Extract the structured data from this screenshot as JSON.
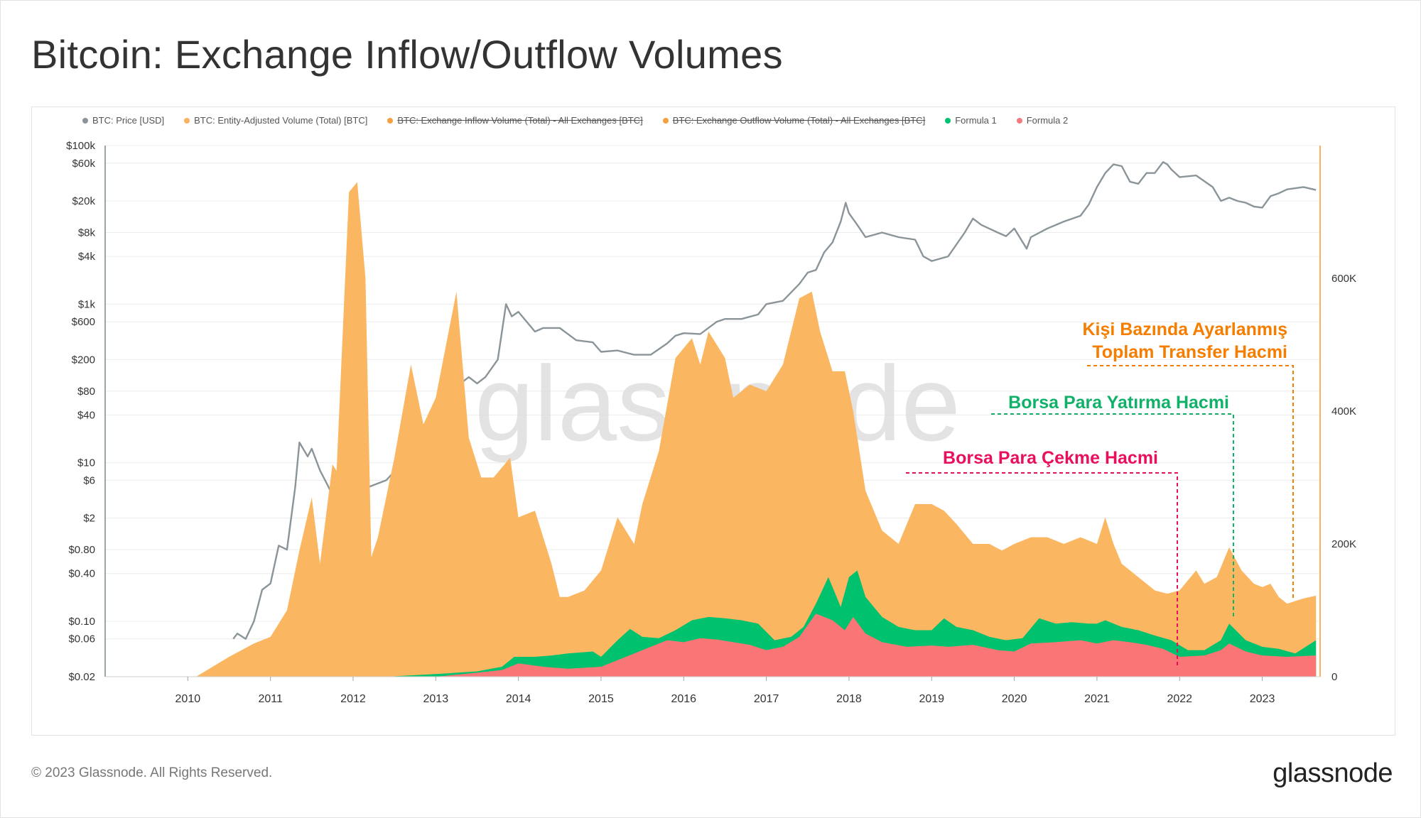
{
  "title": "Bitcoin: Exchange Inflow/Outflow Volumes",
  "legend": [
    {
      "label": "BTC: Price [USD]",
      "color": "#8a9499",
      "struck": false
    },
    {
      "label": "BTC: Entity-Adjusted Volume (Total) [BTC]",
      "color": "#fbb160",
      "struck": false
    },
    {
      "label": "BTC: Exchange Inflow Volume (Total) - All Exchanges [BTC]",
      "color": "#f5a03c",
      "struck": true
    },
    {
      "label": "BTC: Exchange Outflow Volume (Total) - All Exchanges [BTC]",
      "color": "#f5a03c",
      "struck": true
    },
    {
      "label": "Formula 1",
      "color": "#00c16e",
      "struck": false
    },
    {
      "label": "Formula 2",
      "color": "#f37a7e",
      "struck": false
    }
  ],
  "annotations": {
    "adjusted_line1": "Kişi Bazında Ayarlanmış",
    "adjusted_line2": "Toplam Transfer Hacmi",
    "inflow": "Borsa Para Yatırma Hacmi",
    "outflow": "Borsa Para Çekme Hacmi"
  },
  "watermark": "glassnode",
  "footer": "© 2023 Glassnode. All Rights Reserved.",
  "brand": "glassnode",
  "colors": {
    "price": "#8a9499",
    "volume": "#fbb661",
    "formula1": "#00c16e",
    "formula2": "#fa7676",
    "orange_text": "#f57d00",
    "green_text": "#11b16a",
    "pink_text": "#ea0f5e"
  },
  "chart_data": {
    "type": "area",
    "x_ticks": [
      "2010",
      "2011",
      "2012",
      "2013",
      "2014",
      "2015",
      "2016",
      "2017",
      "2018",
      "2019",
      "2020",
      "2021",
      "2022",
      "2023"
    ],
    "x_range": [
      2009.0,
      2023.7
    ],
    "y_left_ticks": [
      "$100k",
      "$60k",
      "$20k",
      "$8k",
      "$4k",
      "$1k",
      "$600",
      "$200",
      "$80",
      "$40",
      "$10",
      "$6",
      "$2",
      "$0.80",
      "$0.40",
      "$0.10",
      "$0.06",
      "$0.02"
    ],
    "y_left_tick_values": [
      100000,
      60000,
      20000,
      8000,
      4000,
      1000,
      600,
      200,
      80,
      40,
      10,
      6,
      2,
      0.8,
      0.4,
      0.1,
      0.06,
      0.02
    ],
    "y_left_range_log": [
      0.02,
      100000
    ],
    "y_right_ticks": [
      "600K",
      "400K",
      "200K",
      "0"
    ],
    "y_right_tick_values": [
      600000,
      400000,
      200000,
      0
    ],
    "y_right_range": [
      0,
      800000
    ],
    "series": [
      {
        "name": "BTC: Price [USD]",
        "axis": "left",
        "scale": "log",
        "x": [
          2010.55,
          2010.6,
          2010.7,
          2010.8,
          2010.9,
          2011.0,
          2011.1,
          2011.2,
          2011.3,
          2011.35,
          2011.45,
          2011.5,
          2011.6,
          2011.7,
          2011.8,
          2011.9,
          2012.0,
          2012.2,
          2012.4,
          2012.6,
          2012.7,
          2012.9,
          2013.0,
          2013.15,
          2013.25,
          2013.3,
          2013.4,
          2013.5,
          2013.6,
          2013.75,
          2013.85,
          2013.92,
          2014.0,
          2014.1,
          2014.2,
          2014.3,
          2014.5,
          2014.7,
          2014.9,
          2015.0,
          2015.2,
          2015.4,
          2015.6,
          2015.8,
          2015.9,
          2016.0,
          2016.2,
          2016.4,
          2016.5,
          2016.7,
          2016.9,
          2017.0,
          2017.2,
          2017.4,
          2017.5,
          2017.6,
          2017.7,
          2017.8,
          2017.9,
          2017.96,
          2018.0,
          2018.1,
          2018.2,
          2018.4,
          2018.6,
          2018.8,
          2018.9,
          2019.0,
          2019.2,
          2019.4,
          2019.5,
          2019.6,
          2019.8,
          2019.9,
          2020.0,
          2020.15,
          2020.2,
          2020.4,
          2020.6,
          2020.8,
          2020.9,
          2021.0,
          2021.1,
          2021.2,
          2021.3,
          2021.4,
          2021.5,
          2021.6,
          2021.7,
          2021.8,
          2021.85,
          2021.9,
          2022.0,
          2022.2,
          2022.4,
          2022.5,
          2022.6,
          2022.7,
          2022.8,
          2022.9,
          2023.0,
          2023.1,
          2023.2,
          2023.3,
          2023.5,
          2023.65
        ],
        "y": [
          0.06,
          0.07,
          0.06,
          0.1,
          0.25,
          0.3,
          0.9,
          0.8,
          5,
          18,
          12,
          15,
          8,
          5,
          3,
          3.2,
          5,
          5,
          6,
          10,
          11,
          13,
          14,
          60,
          230,
          100,
          120,
          100,
          120,
          200,
          1000,
          700,
          800,
          600,
          450,
          500,
          500,
          350,
          330,
          250,
          260,
          230,
          230,
          320,
          400,
          430,
          420,
          600,
          650,
          650,
          740,
          1000,
          1100,
          1800,
          2500,
          2700,
          4500,
          6000,
          11000,
          19000,
          14000,
          10000,
          7000,
          8000,
          7000,
          6500,
          4000,
          3500,
          4000,
          8000,
          12000,
          10000,
          8000,
          7200,
          9000,
          5000,
          7000,
          9000,
          11000,
          13000,
          18000,
          30000,
          45000,
          58000,
          55000,
          35000,
          33000,
          45000,
          45000,
          62000,
          58000,
          50000,
          40000,
          42000,
          30000,
          20000,
          22000,
          20000,
          19000,
          17000,
          16500,
          23000,
          25000,
          28000,
          30000,
          27500
        ]
      },
      {
        "name": "BTC: Entity-Adjusted Volume (Total) [BTC]",
        "axis": "right",
        "x": [
          2009.0,
          2010.1,
          2010.5,
          2010.8,
          2011.0,
          2011.2,
          2011.35,
          2011.5,
          2011.6,
          2011.75,
          2011.8,
          2011.95,
          2012.05,
          2012.15,
          2012.22,
          2012.3,
          2012.5,
          2012.7,
          2012.85,
          2013.0,
          2013.25,
          2013.4,
          2013.55,
          2013.7,
          2013.9,
          2014.0,
          2014.2,
          2014.4,
          2014.5,
          2014.6,
          2014.8,
          2015.0,
          2015.2,
          2015.4,
          2015.5,
          2015.7,
          2015.9,
          2016.1,
          2016.2,
          2016.3,
          2016.5,
          2016.6,
          2016.8,
          2017.0,
          2017.2,
          2017.4,
          2017.55,
          2017.65,
          2017.8,
          2017.95,
          2018.05,
          2018.2,
          2018.4,
          2018.6,
          2018.8,
          2019.0,
          2019.15,
          2019.3,
          2019.5,
          2019.7,
          2019.85,
          2020.0,
          2020.2,
          2020.4,
          2020.6,
          2020.8,
          2021.0,
          2021.1,
          2021.2,
          2021.3,
          2021.5,
          2021.7,
          2021.85,
          2022.0,
          2022.2,
          2022.3,
          2022.45,
          2022.6,
          2022.75,
          2022.9,
          2023.0,
          2023.1,
          2023.2,
          2023.3,
          2023.5,
          2023.65
        ],
        "y": [
          0,
          0,
          30000,
          50000,
          60000,
          100000,
          190000,
          270000,
          170000,
          320000,
          310000,
          730000,
          745000,
          600000,
          180000,
          210000,
          330000,
          470000,
          380000,
          420000,
          580000,
          360000,
          300000,
          300000,
          330000,
          240000,
          250000,
          170000,
          120000,
          120000,
          130000,
          160000,
          240000,
          200000,
          260000,
          340000,
          480000,
          510000,
          470000,
          520000,
          480000,
          420000,
          440000,
          430000,
          470000,
          570000,
          580000,
          520000,
          460000,
          460000,
          400000,
          280000,
          220000,
          200000,
          260000,
          260000,
          250000,
          230000,
          200000,
          200000,
          190000,
          200000,
          210000,
          210000,
          200000,
          210000,
          200000,
          240000,
          200000,
          170000,
          150000,
          130000,
          125000,
          130000,
          160000,
          140000,
          150000,
          195000,
          160000,
          140000,
          135000,
          140000,
          120000,
          110000,
          118000,
          122000
        ]
      },
      {
        "name": "Formula 1",
        "axis": "right",
        "x": [
          2009.0,
          2012.4,
          2013.0,
          2013.5,
          2013.8,
          2013.95,
          2014.2,
          2014.4,
          2014.6,
          2014.9,
          2015.0,
          2015.2,
          2015.35,
          2015.5,
          2015.7,
          2015.9,
          2016.1,
          2016.3,
          2016.5,
          2016.7,
          2016.9,
          2017.1,
          2017.3,
          2017.45,
          2017.6,
          2017.75,
          2017.9,
          2018.0,
          2018.1,
          2018.2,
          2018.4,
          2018.6,
          2018.8,
          2019.0,
          2019.15,
          2019.3,
          2019.5,
          2019.7,
          2019.9,
          2020.1,
          2020.3,
          2020.5,
          2020.7,
          2020.9,
          2021.0,
          2021.1,
          2021.3,
          2021.5,
          2021.7,
          2021.9,
          2022.1,
          2022.3,
          2022.5,
          2022.6,
          2022.8,
          2023.0,
          2023.2,
          2023.4,
          2023.65
        ],
        "y": [
          0,
          0,
          4000,
          8000,
          15000,
          30000,
          30000,
          32000,
          35000,
          38000,
          30000,
          55000,
          72000,
          60000,
          58000,
          70000,
          85000,
          90000,
          88000,
          85000,
          80000,
          55000,
          60000,
          75000,
          110000,
          150000,
          105000,
          150000,
          160000,
          120000,
          90000,
          75000,
          70000,
          70000,
          88000,
          75000,
          70000,
          60000,
          55000,
          58000,
          88000,
          80000,
          82000,
          80000,
          80000,
          85000,
          75000,
          70000,
          62000,
          55000,
          40000,
          40000,
          55000,
          80000,
          55000,
          45000,
          42000,
          35000,
          55000
        ]
      },
      {
        "name": "Formula 2",
        "axis": "right",
        "x": [
          2009.0,
          2013.0,
          2013.5,
          2013.8,
          2014.0,
          2014.3,
          2014.6,
          2015.0,
          2015.3,
          2015.5,
          2015.8,
          2016.0,
          2016.2,
          2016.4,
          2016.6,
          2016.8,
          2017.0,
          2017.2,
          2017.4,
          2017.6,
          2017.8,
          2017.95,
          2018.05,
          2018.2,
          2018.4,
          2018.7,
          2019.0,
          2019.2,
          2019.5,
          2019.8,
          2020.0,
          2020.2,
          2020.5,
          2020.8,
          2021.0,
          2021.2,
          2021.4,
          2021.6,
          2021.8,
          2022.0,
          2022.3,
          2022.5,
          2022.6,
          2022.8,
          2023.0,
          2023.3,
          2023.65
        ],
        "y": [
          0,
          0,
          6000,
          10000,
          20000,
          15000,
          12000,
          15000,
          30000,
          40000,
          55000,
          52000,
          58000,
          56000,
          52000,
          48000,
          40000,
          45000,
          60000,
          95000,
          85000,
          70000,
          90000,
          65000,
          52000,
          45000,
          47000,
          45000,
          48000,
          40000,
          38000,
          50000,
          52000,
          55000,
          50000,
          55000,
          52000,
          48000,
          42000,
          30000,
          32000,
          40000,
          50000,
          38000,
          32000,
          30000,
          32000
        ]
      }
    ]
  }
}
